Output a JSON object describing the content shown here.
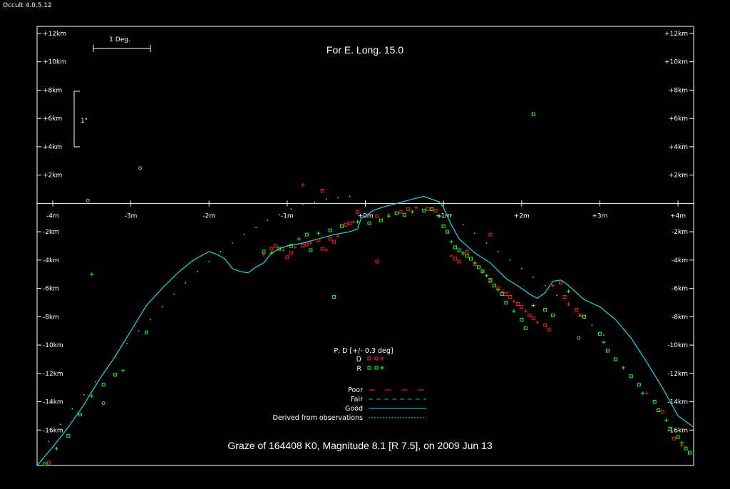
{
  "app": {
    "title": "Occult 4.0.5.12"
  },
  "chart_data": {
    "type": "scatter",
    "title": "For E. Long. 15.0",
    "caption": "Graze of  164408 K0,  Magnitude 8.1 [R 7.5],  on 2009 Jun 13",
    "xlabel": "",
    "ylabel": "",
    "xlim": [
      -4.2,
      4.2
    ],
    "ylim": [
      -18.5,
      12.5
    ],
    "x_ticks": [
      {
        "v": -4,
        "label": "-4m"
      },
      {
        "v": -3,
        "label": "-3m"
      },
      {
        "v": -2,
        "label": "-2m"
      },
      {
        "v": -1,
        "label": "-1m"
      },
      {
        "v": 0,
        "label": "+0m"
      },
      {
        "v": 1,
        "label": "+1m"
      },
      {
        "v": 2,
        "label": "+2m"
      },
      {
        "v": 3,
        "label": "+3m"
      },
      {
        "v": 4,
        "label": "+4m"
      }
    ],
    "y_ticks": [
      {
        "v": 12,
        "label": "+12km"
      },
      {
        "v": 10,
        "label": "+10km"
      },
      {
        "v": 8,
        "label": "+8km"
      },
      {
        "v": 6,
        "label": "+6km"
      },
      {
        "v": 4,
        "label": "+4km"
      },
      {
        "v": 2,
        "label": "+2km"
      },
      {
        "v": -2,
        "label": "-2km"
      },
      {
        "v": -4,
        "label": "-4km"
      },
      {
        "v": -6,
        "label": "-6km"
      },
      {
        "v": -8,
        "label": "-8km"
      },
      {
        "v": -10,
        "label": "-10km"
      },
      {
        "v": -12,
        "label": "-12km"
      },
      {
        "v": -14,
        "label": "-14km"
      },
      {
        "v": -16,
        "label": "-16km"
      }
    ],
    "scale_bars": {
      "degree_label": "1 Deg.",
      "arcsec_label": "1\""
    },
    "legend": {
      "header": "P, D [+/- 0.3 deg]",
      "placement": "bottom-center",
      "events": [
        {
          "label": "D",
          "color": "#ff2020"
        },
        {
          "label": "R",
          "color": "#20ff20"
        }
      ],
      "lines": [
        {
          "label": "Poor",
          "style": "long-dash",
          "color": "#ff2020"
        },
        {
          "label": "Fair",
          "style": "dash",
          "color": "#20b0b0"
        },
        {
          "label": "Good",
          "style": "solid",
          "color": "#20d8e8"
        },
        {
          "label": "Derived from observations",
          "style": "dotted",
          "color": "#20ff20"
        }
      ]
    },
    "colors": {
      "disappear": "#ff2020",
      "reappear": "#20ff20",
      "profile": "#20d8e8",
      "axis": "#ffffff"
    },
    "series": [
      {
        "kind": "profile",
        "x": [
          -4.2,
          -4.0,
          -3.8,
          -3.6,
          -3.4,
          -3.2,
          -3.0,
          -2.8,
          -2.6,
          -2.4,
          -2.2,
          -2.0,
          -1.9,
          -1.8,
          -1.7,
          -1.6,
          -1.5,
          -1.4,
          -1.3,
          -1.2,
          -1.1,
          -1.0,
          -0.8,
          -0.6,
          -0.4,
          -0.2,
          -0.1,
          -0.05,
          0.0,
          0.1,
          0.2,
          0.4,
          0.6,
          0.75,
          0.85,
          0.95,
          1.0,
          1.1,
          1.2,
          1.4,
          1.6,
          1.8,
          2.0,
          2.1,
          2.2,
          2.3,
          2.4,
          2.5,
          2.6,
          2.8,
          3.0,
          3.2,
          3.4,
          3.6,
          3.8,
          4.0,
          4.2
        ],
        "y": [
          -18.5,
          -17.2,
          -15.8,
          -14.2,
          -12.4,
          -10.8,
          -9.0,
          -7.2,
          -6.0,
          -4.9,
          -4.0,
          -3.4,
          -3.6,
          -3.9,
          -4.6,
          -4.8,
          -4.9,
          -4.5,
          -4.2,
          -3.5,
          -3.2,
          -3.0,
          -2.8,
          -2.5,
          -2.2,
          -2.0,
          -1.8,
          -1.0,
          -0.9,
          -0.5,
          -0.3,
          0.0,
          0.3,
          0.5,
          0.3,
          0.1,
          -0.3,
          -1.5,
          -2.5,
          -3.5,
          -4.2,
          -5.3,
          -6.0,
          -6.4,
          -6.7,
          -6.3,
          -5.5,
          -5.4,
          -5.8,
          -6.8,
          -7.3,
          -8.2,
          -9.5,
          -11.2,
          -13.0,
          -15.0,
          -15.8
        ]
      },
      {
        "kind": "limb-dots",
        "x": [
          -4.05,
          -3.9,
          -3.75,
          -3.6,
          -3.45,
          -3.3,
          -3.2,
          -3.05,
          -2.9,
          -2.75,
          -2.6,
          -2.45,
          -2.3,
          -2.15,
          -2.0,
          -1.85,
          -1.7,
          -1.55,
          -1.4,
          -1.25,
          -1.1,
          -0.95,
          -0.8,
          -0.65,
          -0.5,
          -0.35,
          -0.2,
          1.1,
          1.25,
          1.4,
          1.55,
          1.7,
          1.85,
          2.0,
          2.15,
          2.3,
          2.45,
          2.6,
          2.75,
          2.9,
          3.05
        ],
        "y": [
          -16.8,
          -15.6,
          -14.5,
          -13.5,
          -12.6,
          -11.6,
          -10.8,
          -9.9,
          -9.0,
          -8.2,
          -7.3,
          -6.4,
          -5.6,
          -4.8,
          -4.1,
          -3.4,
          -2.8,
          -2.2,
          -1.7,
          -1.2,
          -0.8,
          -0.4,
          -0.1,
          0.1,
          0.3,
          0.4,
          0.5,
          -0.8,
          -1.5,
          -2.1,
          -2.8,
          -3.4,
          -4.0,
          -4.6,
          -5.2,
          -5.8,
          -6.5,
          -7.2,
          -7.9,
          -8.6,
          -9.3
        ]
      },
      {
        "name": "D",
        "kind": "disappear",
        "x": [
          -4.05,
          -1.3,
          -1.2,
          -1.15,
          -1.05,
          -1.0,
          -0.95,
          -0.9,
          -0.8,
          -0.75,
          -0.7,
          -0.6,
          -0.55,
          -0.5,
          -0.45,
          -0.4,
          -0.35,
          -0.25,
          -0.2,
          -0.15,
          -0.1,
          0.15,
          0.3,
          0.45,
          0.55,
          0.65,
          0.8,
          0.9,
          1.1,
          1.15,
          1.2,
          1.25,
          1.3,
          1.4,
          1.5,
          1.6,
          1.7,
          1.75,
          1.8,
          1.85,
          1.9,
          1.95,
          2.0,
          2.05,
          2.1,
          2.15,
          2.2,
          2.3,
          2.35,
          2.4,
          2.5,
          2.55,
          2.6,
          2.7,
          2.75,
          3.6,
          3.8,
          3.95,
          4.05,
          1.6,
          0.15,
          -0.8,
          -0.55
        ],
        "y": [
          -18.3,
          -3.6,
          -3.2,
          -3.0,
          -3.3,
          -3.8,
          -3.5,
          -3.1,
          -3.0,
          -2.9,
          -2.8,
          -2.6,
          -3.2,
          -3.3,
          -2.5,
          -2.7,
          -2.3,
          -1.5,
          -1.4,
          -1.3,
          -0.6,
          -0.9,
          -0.8,
          -0.6,
          -0.4,
          -0.3,
          -0.4,
          -0.5,
          -3.7,
          -3.9,
          -4.1,
          -3.6,
          -3.4,
          -4.3,
          -4.8,
          -5.5,
          -6.0,
          -6.2,
          -6.4,
          -6.6,
          -6.9,
          -7.1,
          -7.3,
          -7.6,
          -7.9,
          -8.1,
          -8.4,
          -8.6,
          -8.9,
          -5.8,
          -5.6,
          -6.6,
          -7.1,
          -7.5,
          -7.9,
          -13.4,
          -14.7,
          -16.6,
          -17.1,
          -2.2,
          -4.1,
          1.3,
          0.9
        ]
      },
      {
        "name": "R",
        "kind": "reappear",
        "x": [
          -4.1,
          -3.95,
          -3.8,
          -3.65,
          -3.5,
          -3.35,
          -3.2,
          -3.1,
          -2.8,
          -1.3,
          -1.2,
          -1.1,
          -0.95,
          -0.85,
          -0.75,
          -0.7,
          -0.6,
          -0.45,
          -0.3,
          -0.1,
          0.05,
          0.2,
          0.3,
          0.4,
          0.5,
          0.6,
          0.75,
          0.85,
          0.95,
          1.0,
          1.05,
          1.1,
          1.15,
          1.2,
          1.25,
          1.3,
          1.35,
          1.4,
          1.45,
          1.5,
          1.55,
          1.6,
          1.65,
          1.7,
          1.75,
          1.8,
          1.9,
          2.0,
          2.05,
          2.15,
          2.3,
          2.4,
          2.6,
          2.8,
          3.0,
          3.05,
          3.1,
          3.2,
          3.3,
          3.4,
          3.5,
          3.55,
          3.7,
          3.75,
          3.85,
          3.9,
          4.0,
          4.05,
          4.1,
          4.15,
          -3.5,
          2.15,
          -0.4
        ],
        "y": [
          -18.4,
          -17.3,
          -16.4,
          -14.9,
          -13.6,
          -12.8,
          -12.1,
          -11.8,
          -9.1,
          -3.4,
          -3.5,
          -3.2,
          -3.0,
          -2.5,
          -2.2,
          -3.3,
          -2.1,
          -1.9,
          -1.6,
          -1.3,
          -1.4,
          -1.2,
          -0.9,
          -0.7,
          -0.8,
          -0.6,
          -0.5,
          -0.4,
          -0.9,
          -1.6,
          -2.0,
          -2.7,
          -3.1,
          -3.3,
          -3.5,
          -3.7,
          -3.9,
          -4.2,
          -4.5,
          -4.8,
          -5.1,
          -5.4,
          -5.8,
          -6.1,
          -6.4,
          -7.0,
          -7.6,
          -8.2,
          -8.8,
          -7.2,
          -7.5,
          -7.9,
          -6.2,
          -8.0,
          -9.2,
          -9.8,
          -10.4,
          -11.0,
          -11.6,
          -12.2,
          -12.8,
          -13.4,
          -14.0,
          -14.6,
          -15.3,
          -15.9,
          -16.5,
          -16.9,
          -17.3,
          -17.6,
          -5.0,
          6.3,
          -6.6
        ]
      },
      {
        "kind": "grey-markers",
        "x": [
          -3.55,
          -2.88,
          -3.35,
          2.73
        ],
        "y": [
          0.2,
          2.5,
          -14.1,
          -9.5
        ]
      }
    ]
  }
}
